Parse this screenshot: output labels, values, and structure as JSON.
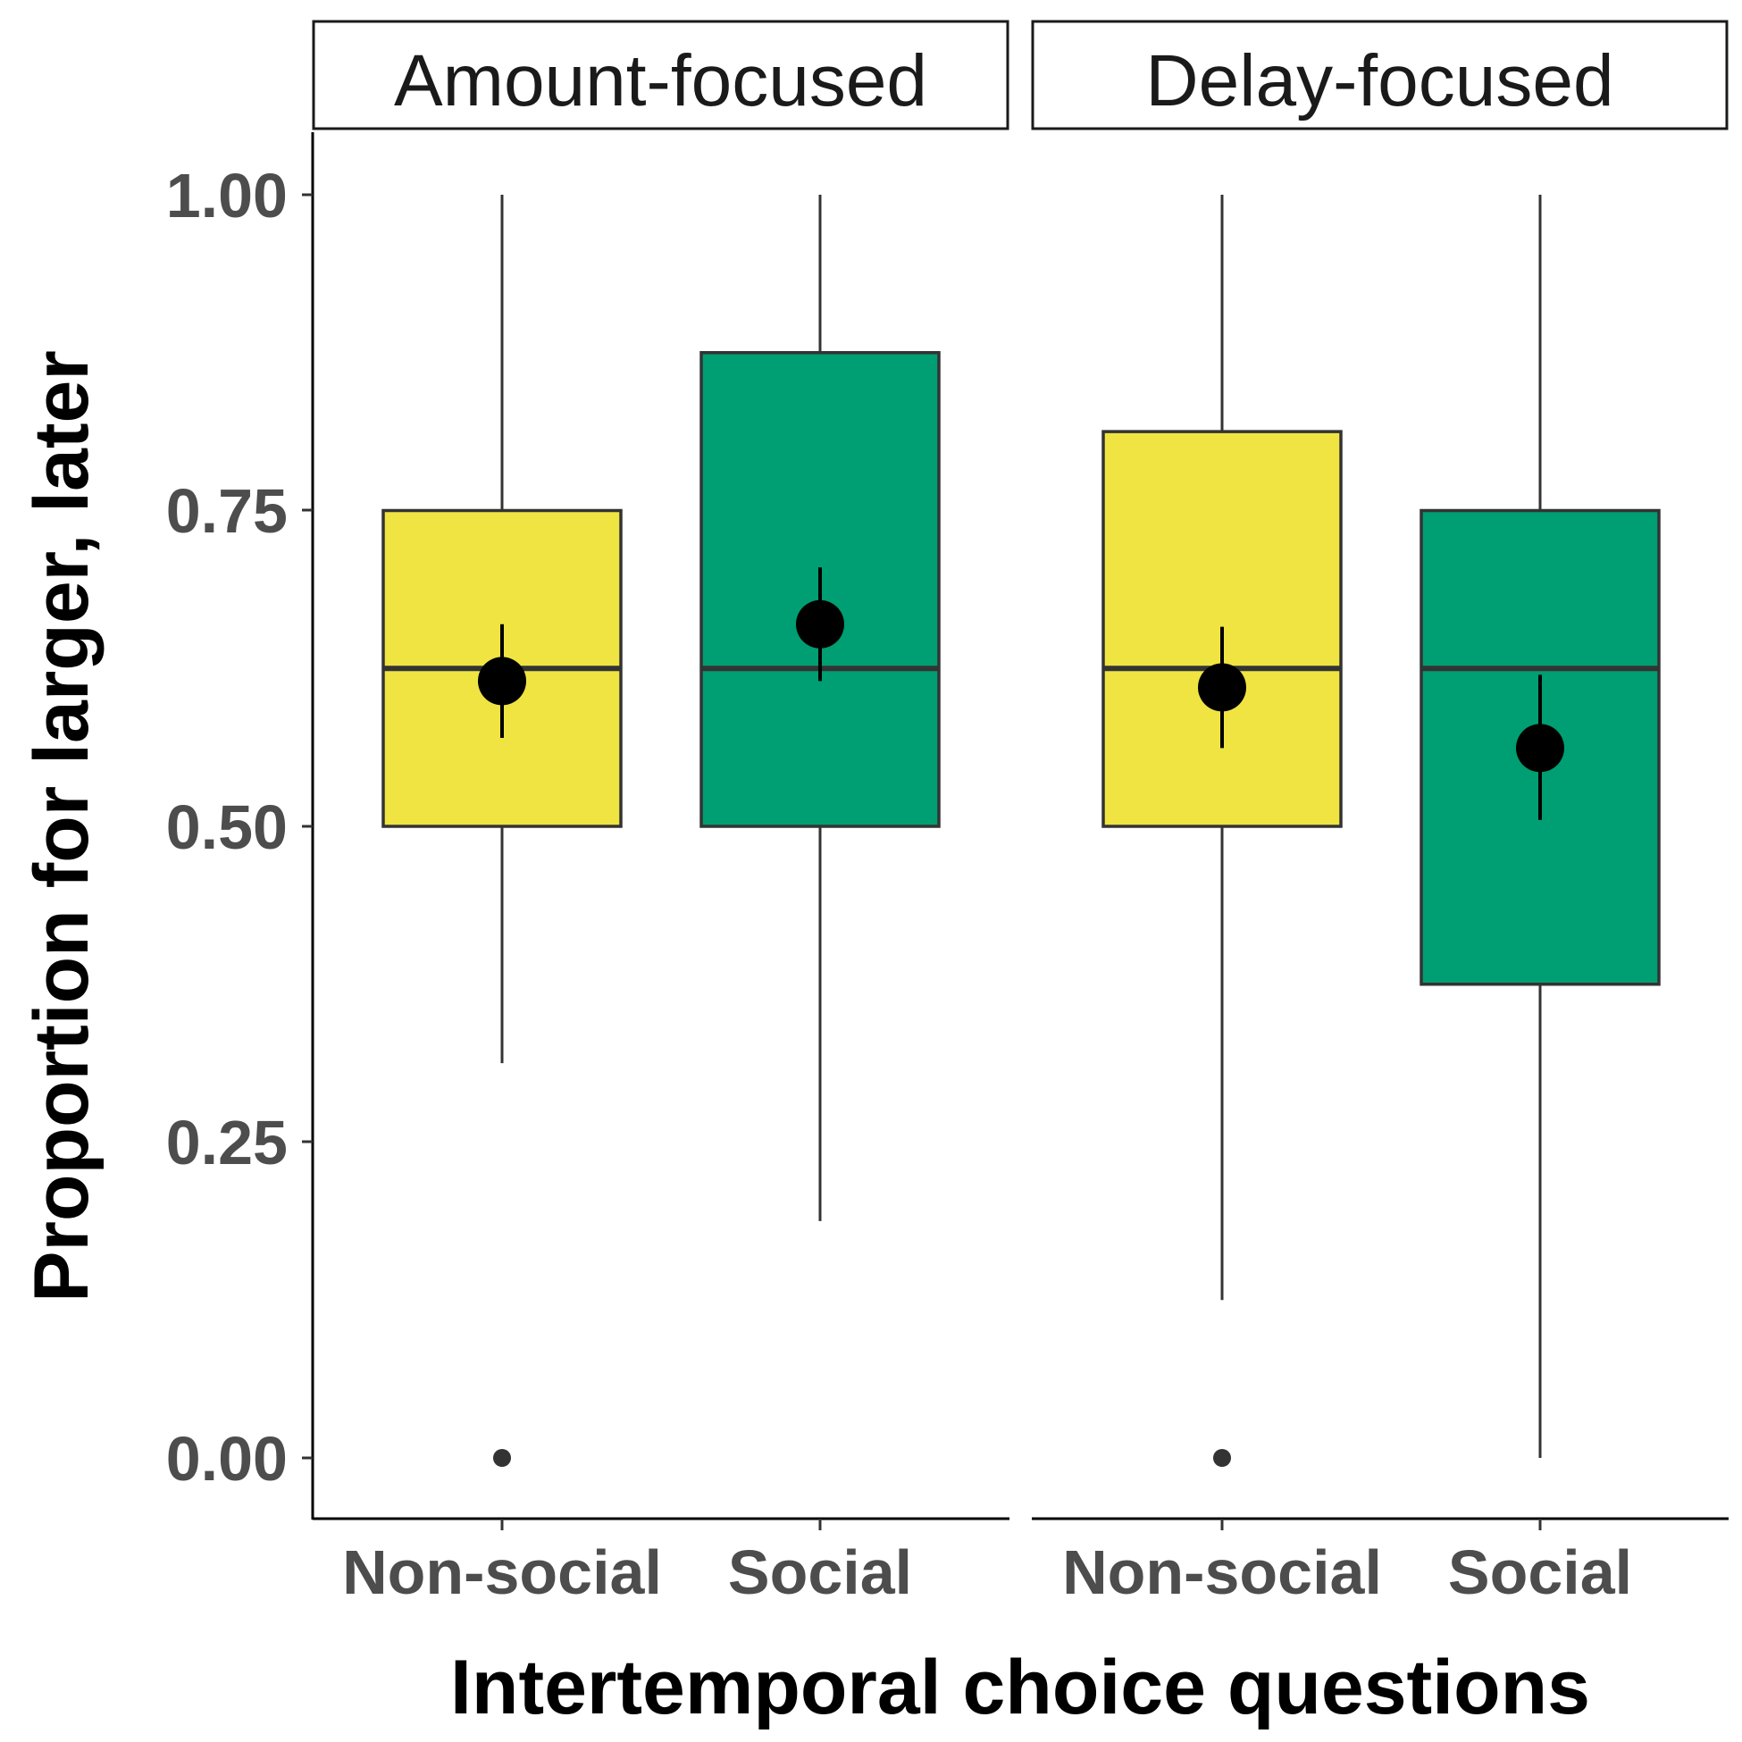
{
  "chart_data": {
    "type": "boxplot",
    "xlabel": "Intertemporal choice questions",
    "ylabel": "Proportion for larger, later",
    "ylim": [
      -0.05,
      1.05
    ],
    "y_ticks": [
      "0.00",
      "0.25",
      "0.50",
      "0.75",
      "1.00"
    ],
    "y_tick_values": [
      0,
      0.25,
      0.5,
      0.75,
      1.0
    ],
    "categories": [
      "Non-social",
      "Social"
    ],
    "colors": {
      "Non-social": "#F0E442",
      "Social": "#009E73"
    },
    "grid": false,
    "legend": "none",
    "panels": [
      {
        "name": "Amount-focused",
        "boxes": [
          {
            "category": "Non-social",
            "whisker_low": 0.3125,
            "q1": 0.5,
            "median": 0.625,
            "q3": 0.75,
            "whisker_high": 1.0,
            "outliers": [
              0.0
            ],
            "mean": 0.615,
            "mean_ci": [
              0.57,
              0.66
            ]
          },
          {
            "category": "Social",
            "whisker_low": 0.1875,
            "q1": 0.5,
            "median": 0.625,
            "q3": 0.875,
            "whisker_high": 1.0,
            "outliers": [],
            "mean": 0.66,
            "mean_ci": [
              0.615,
              0.705
            ]
          }
        ]
      },
      {
        "name": "Delay-focused",
        "boxes": [
          {
            "category": "Non-social",
            "whisker_low": 0.125,
            "q1": 0.5,
            "median": 0.625,
            "q3": 0.8125,
            "whisker_high": 1.0,
            "outliers": [
              0.0
            ],
            "mean": 0.61,
            "mean_ci": [
              0.562,
              0.658
            ]
          },
          {
            "category": "Social",
            "whisker_low": 0.0,
            "q1": 0.375,
            "median": 0.625,
            "q3": 0.75,
            "whisker_high": 1.0,
            "outliers": [],
            "mean": 0.562,
            "mean_ci": [
              0.505,
              0.62
            ]
          }
        ]
      }
    ]
  }
}
